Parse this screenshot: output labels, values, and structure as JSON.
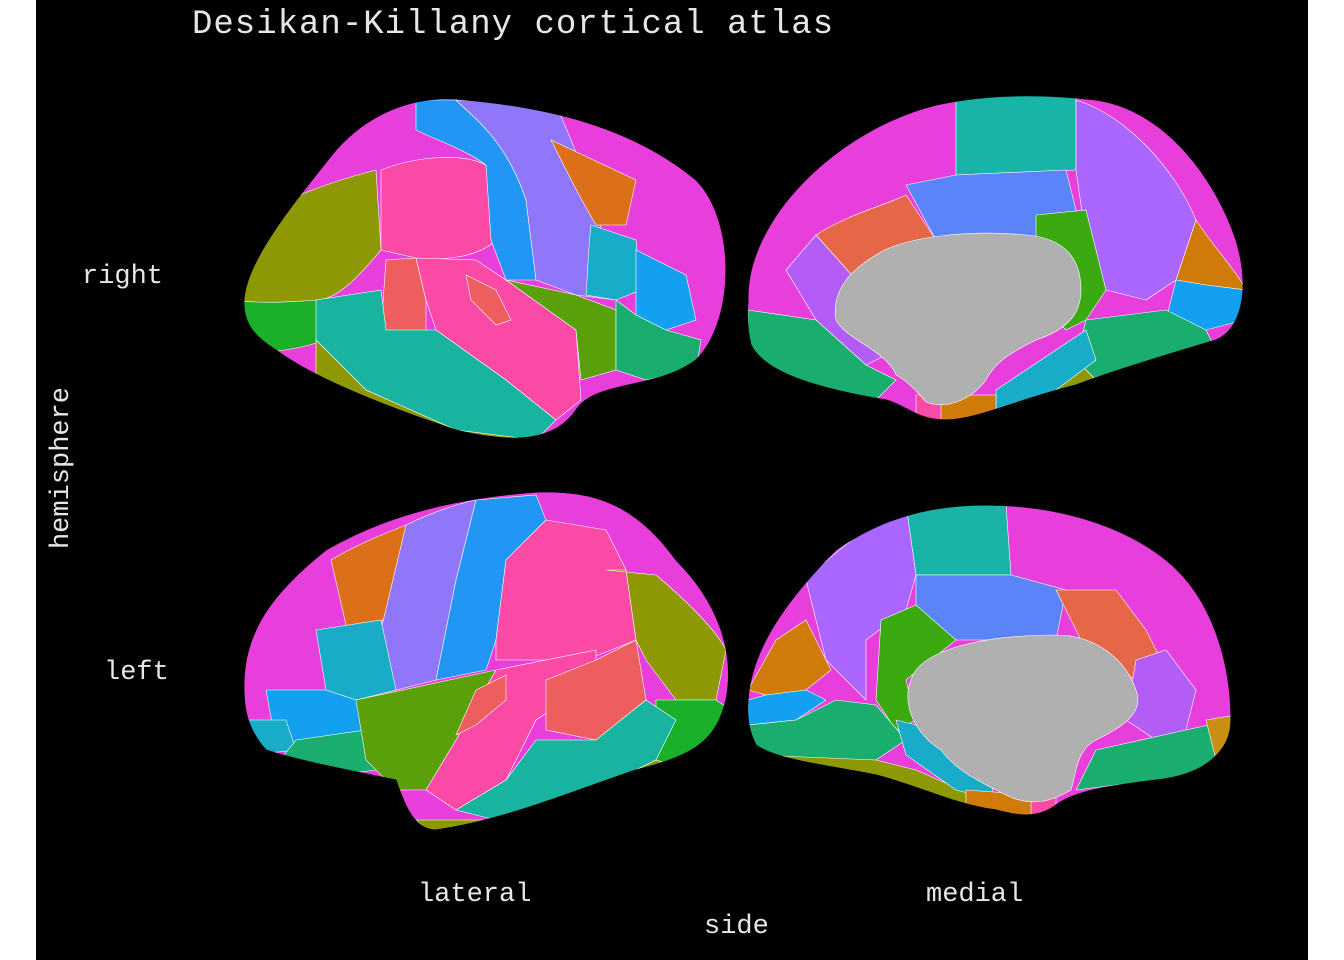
{
  "title": "Desikan-Killany cortical atlas",
  "axes": {
    "x_title": "side",
    "y_title": "hemisphere",
    "x_labels": [
      "lateral",
      "medial"
    ],
    "y_labels": [
      "right",
      "left"
    ]
  },
  "colors": {
    "background": "#000000",
    "text": "#e6e6e6",
    "region_border": "#ffffff",
    "medial_wall": "#b0b0b0"
  }
}
